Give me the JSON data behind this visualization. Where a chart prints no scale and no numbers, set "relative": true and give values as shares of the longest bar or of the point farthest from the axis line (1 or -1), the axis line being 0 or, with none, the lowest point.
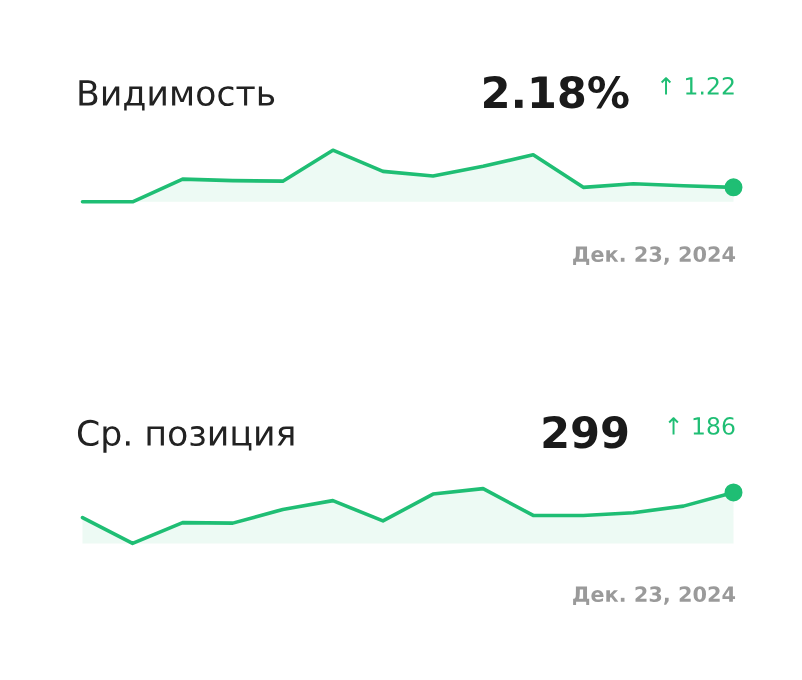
{
  "chart_data": [
    {
      "type": "area",
      "title": "Видимость",
      "relative": true,
      "legend": false,
      "categories": [
        null,
        null,
        null,
        null,
        null,
        null,
        null,
        null,
        null,
        null,
        null,
        null,
        null,
        null
      ],
      "series": [
        {
          "color": "#1fbe74",
          "values": [
            0,
            0,
            0.44,
            0.41,
            0.4,
            1,
            0.59,
            0.5,
            0.69,
            0.91,
            0.28,
            0.35,
            0.31,
            0.28
          ]
        }
      ],
      "annotations": [
        "2.18%",
        "↑ 1.22",
        "Дек. 23, 2024"
      ]
    },
    {
      "type": "area",
      "title": "Ср. позиция",
      "relative": true,
      "legend": false,
      "categories": [
        null,
        null,
        null,
        null,
        null,
        null,
        null,
        null,
        null,
        null,
        null,
        null,
        null,
        null
      ],
      "series": [
        {
          "color": "#1fbe74",
          "values": [
            0.47,
            0,
            0.38,
            0.37,
            0.62,
            0.78,
            0.41,
            0.9,
            1,
            0.51,
            0.51,
            0.56,
            0.68,
            0.93
          ]
        }
      ],
      "annotations": [
        "299",
        "↑ 186",
        "Дек. 23, 2024"
      ]
    }
  ]
}
